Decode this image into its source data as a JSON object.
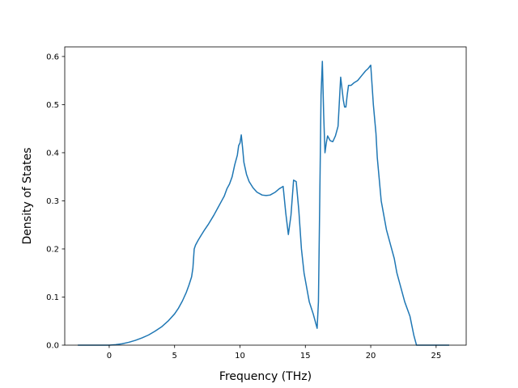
{
  "chart_data": {
    "type": "line",
    "title": "",
    "xlabel": "Frequency (THz)",
    "ylabel": "Density of States",
    "xlim": [
      -3.4,
      27.3
    ],
    "ylim": [
      0.0,
      0.62
    ],
    "xticks": [
      0,
      5,
      10,
      15,
      20,
      25
    ],
    "yticks": [
      0.0,
      0.1,
      0.2,
      0.3,
      0.4,
      0.5,
      0.6
    ],
    "xtick_labels": [
      "0",
      "5",
      "10",
      "15",
      "20",
      "25"
    ],
    "ytick_labels": [
      "0.0",
      "0.1",
      "0.2",
      "0.3",
      "0.4",
      "0.5",
      "0.6"
    ],
    "grid": false,
    "legend": "none",
    "colors": {
      "line": "#1f77b4",
      "axes": "#000000",
      "background": "#ffffff"
    },
    "series": [
      {
        "x": [
          -2.4,
          -1,
          0,
          0.5,
          1,
          1.5,
          2,
          2.5,
          3,
          3.5,
          4,
          4.5,
          5,
          5.3,
          5.6,
          5.9,
          6.1,
          6.3,
          6.4,
          6.5,
          6.6,
          6.8,
          7,
          7.3,
          7.6,
          8,
          8.3,
          8.6,
          8.8,
          9,
          9.2,
          9.4,
          9.6,
          9.8,
          9.9,
          10,
          10.1,
          10.2,
          10.3,
          10.5,
          10.7,
          11,
          11.3,
          11.7,
          12,
          12.3,
          12.7,
          13,
          13.3,
          13.5,
          13.7,
          13.9,
          14.1,
          14.3,
          14.5,
          14.7,
          14.9,
          15.1,
          15.3,
          15.6,
          15.9,
          16.0,
          16.1,
          16.2,
          16.3,
          16.4,
          16.5,
          16.6,
          16.7,
          16.8,
          16.9,
          17.1,
          17.3,
          17.5,
          17.7,
          17.9,
          18.0,
          18.1,
          18.2,
          18.3,
          18.4,
          18.5,
          18.7,
          19,
          19.3,
          19.6,
          19.8,
          20,
          20.2,
          20.4,
          20.5,
          20.6,
          20.7,
          20.8,
          21,
          21.2,
          21.5,
          21.8,
          22,
          22.3,
          22.6,
          23,
          23.3,
          23.5,
          23.6,
          23.7,
          23.8,
          24,
          25,
          26
        ],
        "y": [
          0,
          0,
          0,
          0.001,
          0.003,
          0.006,
          0.01,
          0.015,
          0.021,
          0.029,
          0.038,
          0.05,
          0.065,
          0.077,
          0.092,
          0.11,
          0.125,
          0.142,
          0.16,
          0.2,
          0.208,
          0.218,
          0.227,
          0.24,
          0.252,
          0.27,
          0.285,
          0.3,
          0.31,
          0.325,
          0.335,
          0.35,
          0.375,
          0.395,
          0.415,
          0.42,
          0.437,
          0.41,
          0.38,
          0.355,
          0.34,
          0.327,
          0.318,
          0.312,
          0.311,
          0.312,
          0.318,
          0.325,
          0.33,
          0.275,
          0.23,
          0.27,
          0.343,
          0.34,
          0.28,
          0.2,
          0.15,
          0.12,
          0.09,
          0.065,
          0.035,
          0.09,
          0.3,
          0.52,
          0.59,
          0.48,
          0.4,
          0.42,
          0.435,
          0.43,
          0.425,
          0.423,
          0.435,
          0.455,
          0.557,
          0.51,
          0.495,
          0.495,
          0.52,
          0.54,
          0.54,
          0.54,
          0.545,
          0.55,
          0.56,
          0.57,
          0.575,
          0.582,
          0.5,
          0.44,
          0.39,
          0.36,
          0.33,
          0.3,
          0.27,
          0.24,
          0.21,
          0.18,
          0.15,
          0.12,
          0.09,
          0.06,
          0.02,
          0,
          0,
          0,
          0,
          0,
          0,
          0
        ]
      }
    ]
  }
}
